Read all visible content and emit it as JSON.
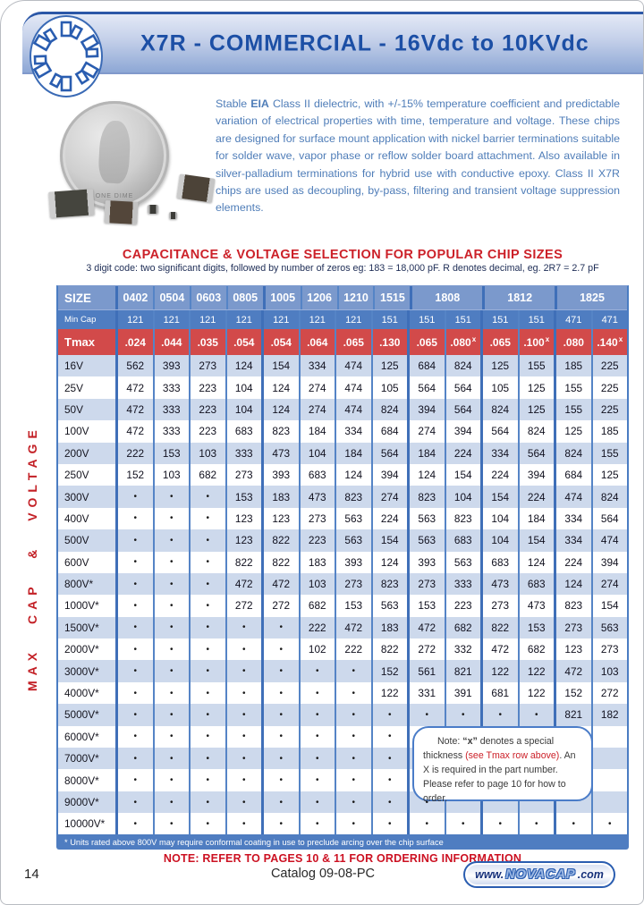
{
  "header": {
    "title": "X7R - COMMERCIAL - 16Vdc to 10KVdc"
  },
  "intro": {
    "pre": "Stable ",
    "eia": "EIA",
    "rest": " Class II dielectric, with +/-15% temperature coefficient and predictable variation of electrical properties with time, temperature and voltage. These chips are designed for surface mount application with nickel barrier terminations suitable for solder wave, vapor phase or reflow solder board attachment. Also available in silver-palladium terminations for hybrid use with conductive epoxy. Class II X7R chips are used as decoupling, by-pass, filtering and transient voltage suppression elements."
  },
  "table": {
    "title": "CAPACITANCE & VOLTAGE SELECTION FOR POPULAR CHIP SIZES",
    "subtitle": "3 digit code: two significant digits, followed by number of zeros eg: 183 = 18,000 pF.  R denotes decimal, eg. 2R7 = 2.7 pF",
    "side_label": "MAX CAP & VOLTAGE",
    "size_label": "SIZE",
    "min_cap_label": "Min Cap",
    "tmax_label": "Tmax",
    "sizes": [
      {
        "label": "0402",
        "span": 1
      },
      {
        "label": "0504",
        "span": 1
      },
      {
        "label": "0603",
        "span": 1
      },
      {
        "label": "0805",
        "span": 1
      },
      {
        "label": "1005",
        "span": 1
      },
      {
        "label": "1206",
        "span": 1
      },
      {
        "label": "1210",
        "span": 1
      },
      {
        "label": "1515",
        "span": 1
      },
      {
        "label": "1808",
        "span": 2
      },
      {
        "label": "1812",
        "span": 2
      },
      {
        "label": "1825",
        "span": 2
      }
    ],
    "min_cap": [
      "121",
      "121",
      "121",
      "121",
      "121",
      "121",
      "121",
      "151",
      "151",
      "151",
      "151",
      "151",
      "471",
      "471"
    ],
    "tmax": [
      {
        "v": ".024"
      },
      {
        "v": ".044"
      },
      {
        "v": ".035"
      },
      {
        "v": ".054"
      },
      {
        "v": ".054"
      },
      {
        "v": ".064"
      },
      {
        "v": ".065"
      },
      {
        "v": ".130"
      },
      {
        "v": ".065"
      },
      {
        "v": ".080",
        "x": true
      },
      {
        "v": ".065"
      },
      {
        "v": ".100",
        "x": true
      },
      {
        "v": ".080"
      },
      {
        "v": ".140",
        "x": true
      }
    ],
    "rows": [
      {
        "label": "16V",
        "cells": [
          "562",
          "393",
          "273",
          "124",
          "154",
          "334",
          "474",
          "125",
          "684",
          "824",
          "125",
          "155",
          "185",
          "225"
        ]
      },
      {
        "label": "25V",
        "cells": [
          "472",
          "333",
          "223",
          "104",
          "124",
          "274",
          "474",
          "105",
          "564",
          "564",
          "105",
          "125",
          "155",
          "225"
        ]
      },
      {
        "label": "50V",
        "cells": [
          "472",
          "333",
          "223",
          "104",
          "124",
          "274",
          "474",
          "824",
          "394",
          "564",
          "824",
          "125",
          "155",
          "225"
        ]
      },
      {
        "label": "100V",
        "cells": [
          "472",
          "333",
          "223",
          "683",
          "823",
          "184",
          "334",
          "684",
          "274",
          "394",
          "564",
          "824",
          "125",
          "185"
        ]
      },
      {
        "label": "200V",
        "cells": [
          "222",
          "153",
          "103",
          "333",
          "473",
          "104",
          "184",
          "564",
          "184",
          "224",
          "334",
          "564",
          "824",
          "155"
        ]
      },
      {
        "label": "250V",
        "cells": [
          "152",
          "103",
          "682",
          "273",
          "393",
          "683",
          "124",
          "394",
          "124",
          "154",
          "224",
          "394",
          "684",
          "125"
        ]
      },
      {
        "label": "300V",
        "cells": [
          "•",
          "•",
          "•",
          "153",
          "183",
          "473",
          "823",
          "274",
          "823",
          "104",
          "154",
          "224",
          "474",
          "824"
        ]
      },
      {
        "label": "400V",
        "cells": [
          "•",
          "•",
          "•",
          "123",
          "123",
          "273",
          "563",
          "224",
          "563",
          "823",
          "104",
          "184",
          "334",
          "564"
        ]
      },
      {
        "label": "500V",
        "cells": [
          "•",
          "•",
          "•",
          "123",
          "822",
          "223",
          "563",
          "154",
          "563",
          "683",
          "104",
          "154",
          "334",
          "474"
        ]
      },
      {
        "label": "600V",
        "cells": [
          "•",
          "•",
          "•",
          "822",
          "822",
          "183",
          "393",
          "124",
          "393",
          "563",
          "683",
          "124",
          "224",
          "394"
        ]
      },
      {
        "label": "800V*",
        "cells": [
          "•",
          "•",
          "•",
          "472",
          "472",
          "103",
          "273",
          "823",
          "273",
          "333",
          "473",
          "683",
          "124",
          "274"
        ]
      },
      {
        "label": "1000V*",
        "cells": [
          "•",
          "•",
          "•",
          "272",
          "272",
          "682",
          "153",
          "563",
          "153",
          "223",
          "273",
          "473",
          "823",
          "154"
        ]
      },
      {
        "label": "1500V*",
        "cells": [
          "•",
          "•",
          "•",
          "•",
          "•",
          "222",
          "472",
          "183",
          "472",
          "682",
          "822",
          "153",
          "273",
          "563"
        ]
      },
      {
        "label": "2000V*",
        "cells": [
          "•",
          "•",
          "•",
          "•",
          "•",
          "102",
          "222",
          "822",
          "272",
          "332",
          "472",
          "682",
          "123",
          "273"
        ]
      },
      {
        "label": "3000V*",
        "cells": [
          "•",
          "•",
          "•",
          "•",
          "•",
          "•",
          "•",
          "152",
          "561",
          "821",
          "122",
          "122",
          "472",
          "103"
        ]
      },
      {
        "label": "4000V*",
        "cells": [
          "•",
          "•",
          "•",
          "•",
          "•",
          "•",
          "•",
          "122",
          "331",
          "391",
          "681",
          "122",
          "152",
          "272"
        ]
      },
      {
        "label": "5000V*",
        "cells": [
          "•",
          "•",
          "•",
          "•",
          "•",
          "•",
          "•",
          "•",
          "•",
          "•",
          "•",
          "•",
          "821",
          "182"
        ]
      },
      {
        "label": "6000V*",
        "cells": [
          "•",
          "•",
          "•",
          "•",
          "•",
          "•",
          "•",
          "•",
          "•",
          "",
          "",
          "",
          "",
          ""
        ]
      },
      {
        "label": "7000V*",
        "cells": [
          "•",
          "•",
          "•",
          "•",
          "•",
          "•",
          "•",
          "•",
          "•",
          "",
          "",
          "",
          "",
          ""
        ]
      },
      {
        "label": "8000V*",
        "cells": [
          "•",
          "•",
          "•",
          "•",
          "•",
          "•",
          "•",
          "•",
          "•",
          "",
          "",
          "",
          "",
          ""
        ]
      },
      {
        "label": "9000V*",
        "cells": [
          "•",
          "•",
          "•",
          "•",
          "•",
          "•",
          "•",
          "•",
          "•",
          "",
          "",
          "",
          "",
          ""
        ]
      },
      {
        "label": "10000V*",
        "cells": [
          "•",
          "•",
          "•",
          "•",
          "•",
          "•",
          "•",
          "•",
          "•",
          "•",
          "•",
          "•",
          "•",
          "•"
        ]
      }
    ],
    "footnote": "* Units rated above 800V may require conformal coating in use to preclude arcing over the chip surface"
  },
  "note_box": {
    "pre": "Note: ",
    "quoted_x": "“x”",
    "mid": " denotes a special thickness ",
    "red": "(see Tmax row above)",
    "post": ". An X is required in the part number. Please refer to page 10 for how to order."
  },
  "ordering_note": "NOTE: REFER TO PAGES 10 & 11 FOR ORDERING INFORMATION",
  "photo": {
    "coin_text": "ONE DIME"
  },
  "footer": {
    "page_number": "14",
    "catalog": "Catalog 09-08-PC",
    "website_prefix": "www.",
    "website_brand": "NOVACAP",
    "website_suffix": ".com"
  },
  "colors": {
    "banner_text": "#1c4fa5",
    "header_red": "#cc2129",
    "tmax_red": "#d24a4a",
    "size_row_blue": "#7b99cc",
    "mincap_row_blue": "#4f7dc1",
    "stripe_blue": "#cdd9ec",
    "divider_blue": "#4a7cc2",
    "intro_text_blue": "#4f7db8"
  }
}
